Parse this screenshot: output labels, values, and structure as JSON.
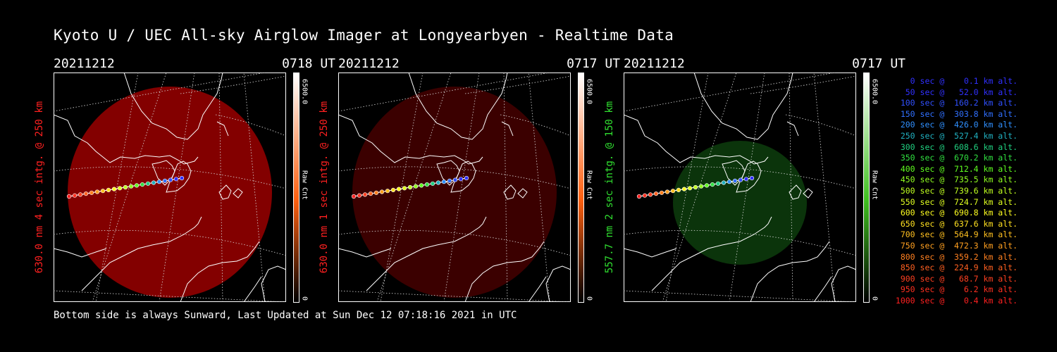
{
  "title": "Kyoto U / UEC All-sky Airglow Imager at Longyearbyen - Realtime Data",
  "footer": "Bottom side is always Sunward, Last Updated at Sun Dec 12 07:18:16 2021 in UTC",
  "panels": [
    {
      "date": "20211212",
      "time": "0718 UT",
      "label": "630.0 nm 4 sec intg. @ 250 km",
      "label_color": "#ff2020",
      "scale_max": "6500.0",
      "scale_unit": "Raw Cnt",
      "scale_min": "0",
      "glow_color": "#9a0000",
      "glow_opacity": 0.85,
      "cbar_top": "#ffffff",
      "cbar_mid": "#ff6010",
      "cbar_bot": "#000000"
    },
    {
      "date": "20211212",
      "time": "0717 UT",
      "label": "630.0 nm 1 sec intg. @ 250 km",
      "label_color": "#ff2020",
      "scale_max": "6500.0",
      "scale_unit": "Raw Cnt",
      "scale_min": "0",
      "glow_color": "#4a0000",
      "glow_opacity": 0.8,
      "cbar_top": "#ffffff",
      "cbar_mid": "#ff6010",
      "cbar_bot": "#000000"
    },
    {
      "date": "20211212",
      "time": "0717 UT",
      "label": "557.7 nm 2 sec intg. @ 150 km",
      "label_color": "#30e030",
      "scale_max": "6500.0",
      "scale_unit": "Raw Cnt",
      "scale_min": "0",
      "glow_color": "#0c3a0c",
      "glow_opacity": 0.9,
      "cbar_top": "#ffffff",
      "cbar_mid": "#40c020",
      "cbar_bot": "#000000"
    }
  ],
  "legend": [
    {
      "text": "   0 sec @    0.1 km alt.",
      "color": "#3030ff"
    },
    {
      "text": "  50 sec @   52.0 km alt.",
      "color": "#3030ff"
    },
    {
      "text": " 100 sec @  160.2 km alt.",
      "color": "#3050ff"
    },
    {
      "text": " 150 sec @  303.8 km alt.",
      "color": "#3070ff"
    },
    {
      "text": " 200 sec @  426.0 km alt.",
      "color": "#3090ff"
    },
    {
      "text": " 250 sec @  527.4 km alt.",
      "color": "#20b0c0"
    },
    {
      "text": " 300 sec @  608.6 km alt.",
      "color": "#20d080"
    },
    {
      "text": " 350 sec @  670.2 km alt.",
      "color": "#30e040"
    },
    {
      "text": " 400 sec @  712.4 km alt.",
      "color": "#60ff20"
    },
    {
      "text": " 450 sec @  735.5 km alt.",
      "color": "#90ff20"
    },
    {
      "text": " 500 sec @  739.6 km alt.",
      "color": "#c0ff20"
    },
    {
      "text": " 550 sec @  724.7 km alt.",
      "color": "#e0ff20"
    },
    {
      "text": " 600 sec @  690.8 km alt.",
      "color": "#ffff20"
    },
    {
      "text": " 650 sec @  637.6 km alt.",
      "color": "#ffe020"
    },
    {
      "text": " 700 sec @  564.9 km alt.",
      "color": "#ffc020"
    },
    {
      "text": " 750 sec @  472.3 km alt.",
      "color": "#ffa020"
    },
    {
      "text": " 800 sec @  359.2 km alt.",
      "color": "#ff8020"
    },
    {
      "text": " 850 sec @  224.9 km alt.",
      "color": "#ff6020"
    },
    {
      "text": " 900 sec @   68.7 km alt.",
      "color": "#ff4020"
    },
    {
      "text": " 950 sec @    6.2 km alt.",
      "color": "#ff3020"
    },
    {
      "text": "1000 sec @    0.4 km alt.",
      "color": "#ff2020"
    }
  ]
}
